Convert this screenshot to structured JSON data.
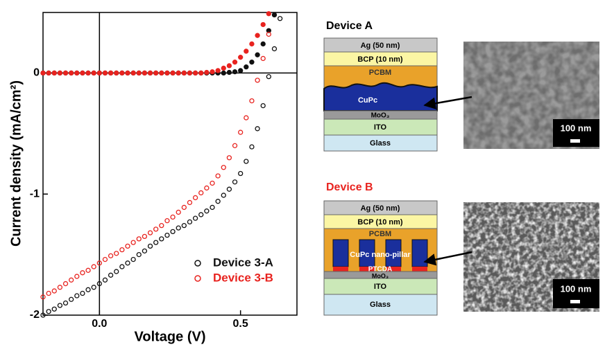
{
  "chart_data": {
    "type": "scatter",
    "xlabel": "Voltage (V)",
    "ylabel": "Current density (mA/cm²)",
    "xlim": [
      -0.2,
      0.7
    ],
    "ylim": [
      -2,
      0.5
    ],
    "xticks": [
      {
        "value": 0,
        "label": "0.0"
      },
      {
        "value": 0.5,
        "label": "0.5"
      }
    ],
    "yticks": [
      -2,
      -1,
      0
    ],
    "legend": "lower right",
    "x": [
      -0.2,
      -0.18,
      -0.16,
      -0.14,
      -0.12,
      -0.1,
      -0.08,
      -0.06,
      -0.04,
      -0.02,
      0,
      0.02,
      0.04,
      0.06,
      0.08,
      0.1,
      0.12,
      0.14,
      0.16,
      0.18,
      0.2,
      0.22,
      0.24,
      0.26,
      0.28,
      0.3,
      0.32,
      0.34,
      0.36,
      0.38,
      0.4,
      0.42,
      0.44,
      0.46,
      0.48,
      0.5,
      0.52,
      0.54,
      0.56,
      0.58,
      0.6,
      0.62,
      0.64
    ],
    "series": [
      {
        "name": "Device 3-A",
        "color": "#111111",
        "values": [
          -2.0,
          -1.97,
          -1.95,
          -1.92,
          -1.9,
          -1.87,
          -1.84,
          -1.82,
          -1.79,
          -1.77,
          -1.74,
          -1.71,
          -1.67,
          -1.64,
          -1.6,
          -1.57,
          -1.54,
          -1.5,
          -1.47,
          -1.43,
          -1.4,
          -1.37,
          -1.34,
          -1.31,
          -1.28,
          -1.26,
          -1.23,
          -1.2,
          -1.17,
          -1.14,
          -1.11,
          -1.06,
          -1.01,
          -0.96,
          -0.9,
          -0.83,
          -0.73,
          -0.61,
          -0.46,
          -0.27,
          -0.03,
          0.2,
          0.45
        ],
        "dark_values": [
          0,
          0,
          0,
          0,
          0,
          0,
          0,
          0,
          0,
          0,
          0,
          0,
          0,
          0,
          0,
          0,
          0,
          0,
          0,
          0,
          0,
          0,
          0,
          0,
          0,
          0,
          0,
          0,
          0,
          0,
          0,
          0,
          0,
          0.005,
          0.01,
          0.02,
          0.05,
          0.09,
          0.15,
          0.24,
          0.35,
          0.48,
          null
        ]
      },
      {
        "name": "Device 3-B",
        "color": "#e8231f",
        "values": [
          -1.85,
          -1.82,
          -1.8,
          -1.77,
          -1.74,
          -1.71,
          -1.68,
          -1.65,
          -1.63,
          -1.6,
          -1.57,
          -1.54,
          -1.51,
          -1.49,
          -1.46,
          -1.43,
          -1.4,
          -1.37,
          -1.35,
          -1.32,
          -1.29,
          -1.26,
          -1.22,
          -1.19,
          -1.15,
          -1.11,
          -1.07,
          -1.03,
          -0.99,
          -0.95,
          -0.91,
          -0.85,
          -0.78,
          -0.7,
          -0.6,
          -0.49,
          -0.37,
          -0.23,
          -0.06,
          0.12,
          0.32,
          null,
          null
        ],
        "dark_values": [
          0,
          0,
          0,
          0,
          0,
          0,
          0,
          0,
          0,
          0,
          0,
          0,
          0,
          0,
          0,
          0,
          0,
          0,
          0,
          0,
          0,
          0,
          0,
          0,
          0,
          0,
          0,
          0,
          0,
          0.005,
          0.01,
          0.02,
          0.04,
          0.06,
          0.09,
          0.13,
          0.18,
          0.24,
          0.31,
          0.4,
          0.49,
          null,
          null
        ]
      }
    ]
  },
  "diagrams": [
    {
      "title": "Device A",
      "ag": "Ag (50 nm)",
      "bcp": "BCP (10 nm)",
      "pcbm": "PCBM",
      "donor": "CuPc",
      "moo3": "MoO₃",
      "ito": "ITO",
      "glass": "Glass",
      "scale_bar": "100 nm"
    },
    {
      "title": "Device B",
      "ag": "Ag (50 nm)",
      "bcp": "BCP (10 nm)",
      "pcbm": "PCBM",
      "donor": "CuPc nano-pillar",
      "ptcda": "PTCDA",
      "moo3": "MoO₃",
      "ito": "ITO",
      "glass": "Glass",
      "scale_bar": "100 nm"
    }
  ]
}
